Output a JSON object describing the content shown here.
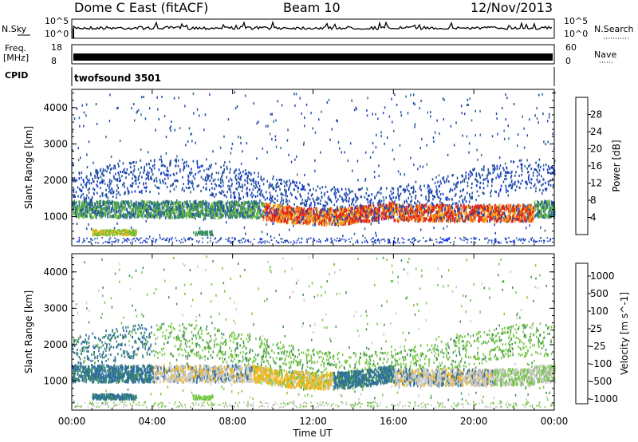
{
  "header": {
    "station": "Dome C East (fitACF)",
    "beam": "Beam 10",
    "date": "12/Nov/2013"
  },
  "top_panels": {
    "nsky_label": "N.Sky",
    "nsky_ticks": [
      "10^5",
      "10^0"
    ],
    "nsearch_label": "N.Search",
    "nsearch_ticks": [
      "10^5",
      "10^0"
    ],
    "freq_label": "Freq.",
    "freq_unit": "[MHz]",
    "freq_ticks": [
      "18",
      "8"
    ],
    "nave_label": "Nave",
    "nave_ticks": [
      "60",
      "0"
    ],
    "cpid_label": "CPID",
    "cpid_value": "twofsound 3501"
  },
  "chart_data": [
    {
      "type": "heatmap",
      "name": "power",
      "ylabel": "Slant Range [km]",
      "xlabel": "",
      "ylim": [
        200,
        4500
      ],
      "y_ticks": [
        1000,
        2000,
        3000,
        4000
      ],
      "x_ticks": [
        "00:00",
        "04:00",
        "08:00",
        "12:00",
        "16:00",
        "20:00",
        "00:00"
      ],
      "xlim_hours": [
        0,
        24
      ],
      "colorbar": {
        "label": "Power [dB]",
        "range": [
          0,
          32
        ],
        "ticks": [
          4,
          8,
          12,
          16,
          20,
          24,
          28
        ],
        "colors": [
          "#0a1eff",
          "#1f4aa8",
          "#2d6f8f",
          "#3c8f62",
          "#6fbf3a",
          "#f3b61a",
          "#f47a0f",
          "#e2231a"
        ]
      },
      "bands": [
        {
          "t": [
            0.5,
            24
          ],
          "r": [
            1000,
            1300
          ],
          "level": "mid"
        },
        {
          "t": [
            9.5,
            16
          ],
          "r": [
            700,
            1200
          ],
          "level": "high"
        },
        {
          "t": [
            16,
            23
          ],
          "r": [
            900,
            1100
          ],
          "level": "high"
        },
        {
          "t": [
            1,
            3
          ],
          "r": [
            450,
            600
          ],
          "level": "mid"
        },
        {
          "t": [
            0,
            24
          ],
          "r": [
            1500,
            2400
          ],
          "level": "low"
        }
      ]
    },
    {
      "type": "heatmap",
      "name": "velocity",
      "ylabel": "Slant Range [km]",
      "xlabel": "Time UT",
      "ylim": [
        200,
        4500
      ],
      "y_ticks": [
        1000,
        2000,
        3000,
        4000
      ],
      "x_ticks": [
        "00:00",
        "04:00",
        "08:00",
        "12:00",
        "16:00",
        "20:00",
        "00:00"
      ],
      "xlim_hours": [
        0,
        24
      ],
      "colorbar": {
        "label": "Velocity [m s^-1]",
        "ticks": [
          "1000",
          "500",
          "100",
          "25",
          "-25",
          "-100",
          "-500",
          "-1000"
        ],
        "colors": [
          "#1f3fc8",
          "#2f6f9e",
          "#3f8f5a",
          "#74c642",
          "#c8c8c8",
          "#f3b61a",
          "#f47a0f",
          "#e2231a"
        ]
      }
    }
  ]
}
